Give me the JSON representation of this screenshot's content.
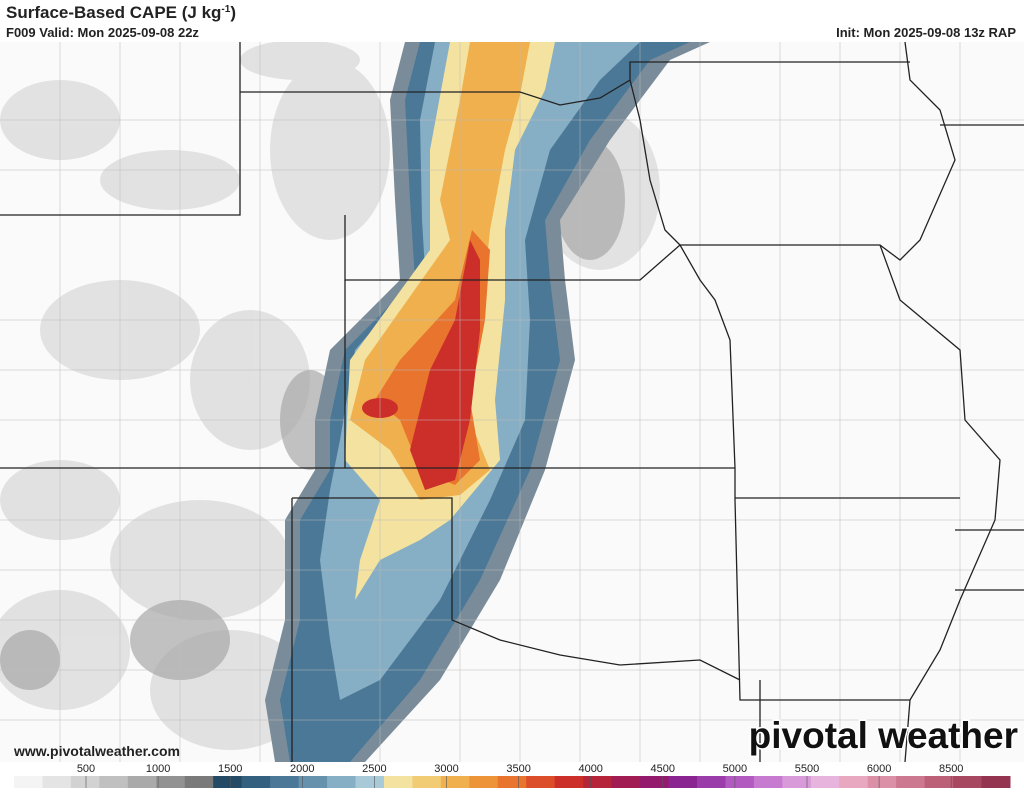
{
  "header": {
    "title": "Surface-Based CAPE (J kg",
    "title_sup": "-1",
    "title_end": ")",
    "valid": "F009 Valid: Mon 2025-09-08 22z",
    "init": "Init: Mon 2025-09-08 13z RAP"
  },
  "watermark": "www.pivotalweather.com",
  "logo": "pivotal weather",
  "colorbar": {
    "ticks": [
      500,
      1000,
      1500,
      2000,
      2500,
      3000,
      3500,
      4000,
      4500,
      5000,
      5500,
      6000,
      8500
    ],
    "colors": [
      "#f4f4f4",
      "#e4e4e4",
      "#d2d2d2",
      "#c0c0c0",
      "#aaaaaa",
      "#929292",
      "#7a7a7a",
      "#244a66",
      "#33607e",
      "#4a7896",
      "#6692ad",
      "#86aec4",
      "#a8cad8",
      "#f4e3a0",
      "#f1cc74",
      "#f0b04e",
      "#ee9438",
      "#e8742e",
      "#dc4e2a",
      "#cc2f2a",
      "#b52438",
      "#a01c52",
      "#941a6e",
      "#8a2490",
      "#9a3caa",
      "#b25ac0",
      "#c67ad0",
      "#d89ad8",
      "#e6b4dc",
      "#e8a8c0",
      "#dc90a8",
      "#cc7890",
      "#bc6078",
      "#a84860",
      "#943450"
    ]
  }
}
